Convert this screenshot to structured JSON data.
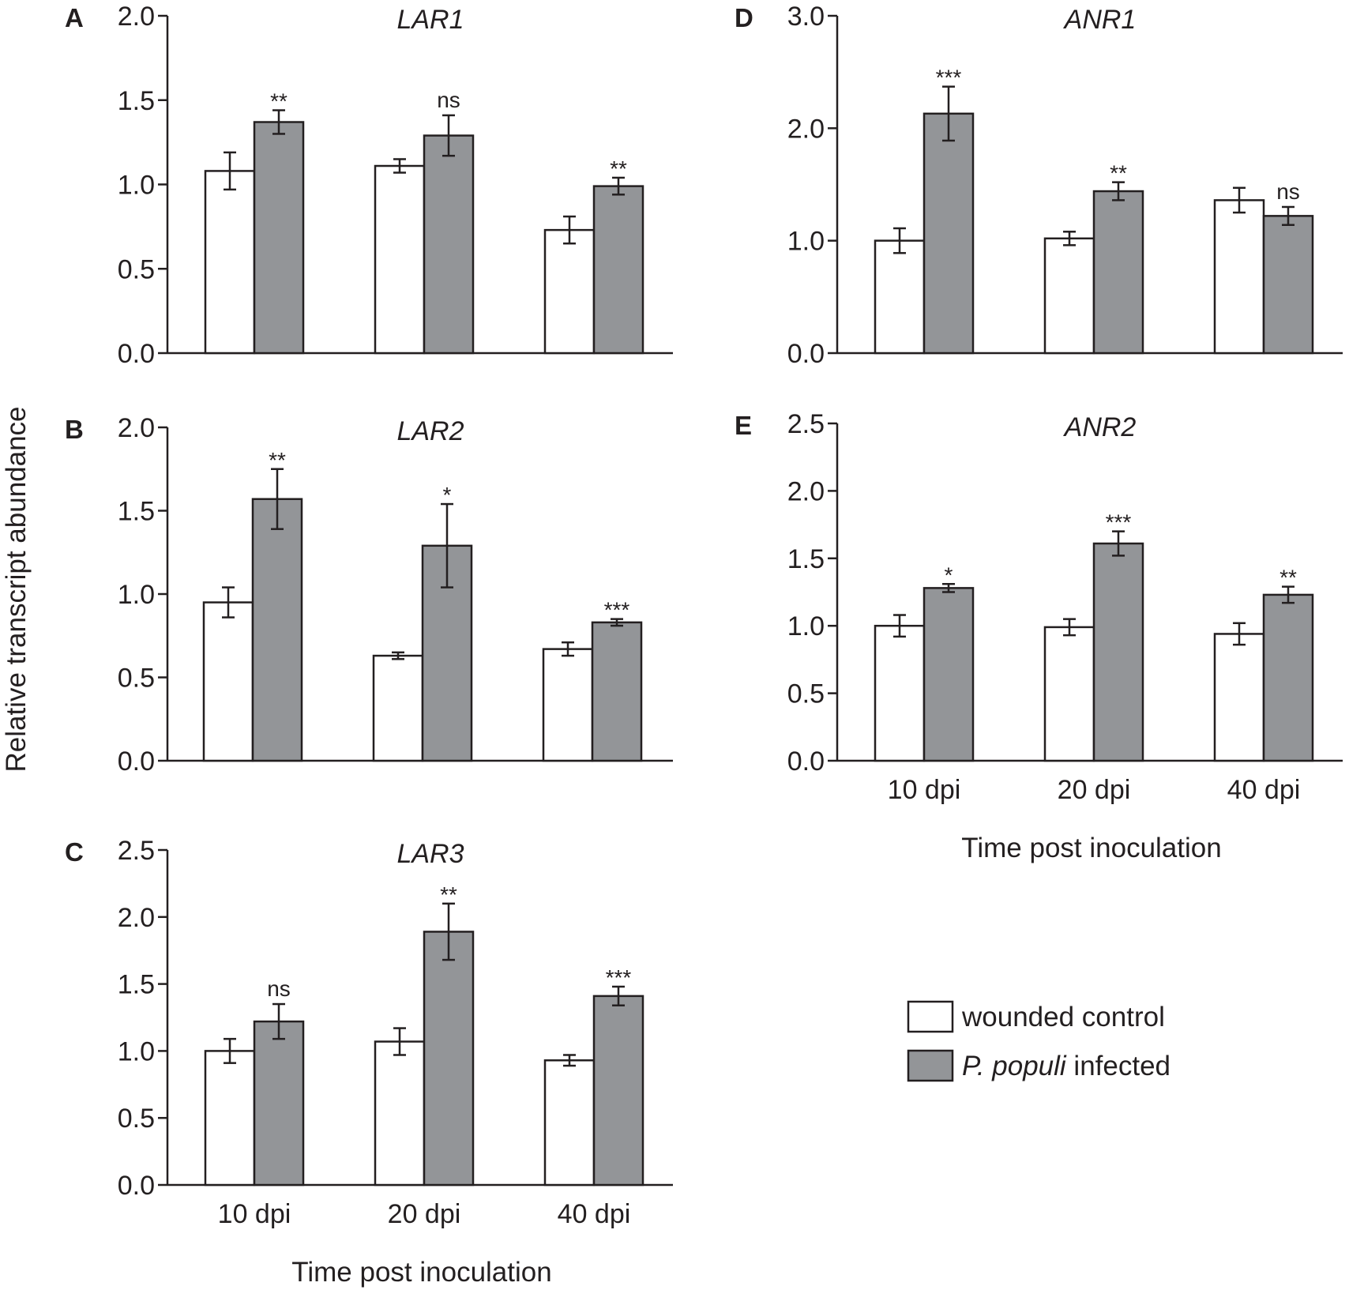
{
  "colors": {
    "control": "#ffffff",
    "infected": "#939598",
    "ink": "#231f20"
  },
  "y_axis_title": "Relative transcript abundance",
  "legend": {
    "control_label": "wounded control",
    "infected_italic": "P. populi",
    "infected_rest": " infected"
  },
  "chart_data": [
    {
      "type": "bar",
      "panel": "A",
      "title": "LAR1",
      "categories": [
        "10 dpi",
        "20 dpi",
        "40 dpi"
      ],
      "ylim": [
        0,
        2.0
      ],
      "yticks": [
        "0.0",
        "0.5",
        "1.0",
        "1.5",
        "2.0"
      ],
      "xlabel": "",
      "ylabel": "Relative transcript abundance",
      "series": [
        {
          "name": "wounded control",
          "values": [
            1.08,
            1.11,
            0.73
          ],
          "errors": [
            0.11,
            0.04,
            0.08
          ]
        },
        {
          "name": "P. populi infected",
          "values": [
            1.37,
            1.29,
            0.99
          ],
          "errors": [
            0.07,
            0.12,
            0.05
          ]
        }
      ],
      "significance": [
        "**",
        "ns",
        "**"
      ]
    },
    {
      "type": "bar",
      "panel": "B",
      "title": "LAR2",
      "categories": [
        "10 dpi",
        "20 dpi",
        "40 dpi"
      ],
      "ylim": [
        0,
        2.0
      ],
      "yticks": [
        "0.0",
        "0.5",
        "1.0",
        "1.5",
        "2.0"
      ],
      "xlabel": "",
      "ylabel": "Relative transcript abundance",
      "series": [
        {
          "name": "wounded control",
          "values": [
            0.95,
            0.63,
            0.67
          ],
          "errors": [
            0.09,
            0.02,
            0.04
          ]
        },
        {
          "name": "P. populi infected",
          "values": [
            1.57,
            1.29,
            0.83
          ],
          "errors": [
            0.18,
            0.25,
            0.02
          ]
        }
      ],
      "significance": [
        "**",
        "*",
        "***"
      ]
    },
    {
      "type": "bar",
      "panel": "C",
      "title": "LAR3",
      "categories": [
        "10 dpi",
        "20 dpi",
        "40 dpi"
      ],
      "ylim": [
        0,
        2.5
      ],
      "yticks": [
        "0.0",
        "0.5",
        "1.0",
        "1.5",
        "2.0",
        "2.5"
      ],
      "xlabel": "Time post inoculation",
      "ylabel": "Relative transcript abundance",
      "series": [
        {
          "name": "wounded control",
          "values": [
            1.0,
            1.07,
            0.93
          ],
          "errors": [
            0.09,
            0.1,
            0.04
          ]
        },
        {
          "name": "P. populi infected",
          "values": [
            1.22,
            1.89,
            1.41
          ],
          "errors": [
            0.13,
            0.21,
            0.07
          ]
        }
      ],
      "significance": [
        "ns",
        "**",
        "***"
      ]
    },
    {
      "type": "bar",
      "panel": "D",
      "title": "ANR1",
      "categories": [
        "10 dpi",
        "20 dpi",
        "40 dpi"
      ],
      "ylim": [
        0,
        3.0
      ],
      "yticks": [
        "0.0",
        "1.0",
        "2.0",
        "3.0"
      ],
      "xlabel": "",
      "ylabel": "Relative transcript abundance",
      "series": [
        {
          "name": "wounded control",
          "values": [
            1.0,
            1.02,
            1.36
          ],
          "errors": [
            0.11,
            0.06,
            0.11
          ]
        },
        {
          "name": "P. populi infected",
          "values": [
            2.13,
            1.44,
            1.22
          ],
          "errors": [
            0.24,
            0.08,
            0.08
          ]
        }
      ],
      "significance": [
        "***",
        "**",
        "ns"
      ]
    },
    {
      "type": "bar",
      "panel": "E",
      "title": "ANR2",
      "categories": [
        "10 dpi",
        "20 dpi",
        "40 dpi"
      ],
      "ylim": [
        0,
        2.5
      ],
      "yticks": [
        "0.0",
        "0.5",
        "1.0",
        "1.5",
        "2.0",
        "2.5"
      ],
      "xlabel": "Time post inoculation",
      "ylabel": "Relative transcript abundance",
      "series": [
        {
          "name": "wounded control",
          "values": [
            1.0,
            0.99,
            0.94
          ],
          "errors": [
            0.08,
            0.06,
            0.08
          ]
        },
        {
          "name": "P. populi infected",
          "values": [
            1.28,
            1.61,
            1.23
          ],
          "errors": [
            0.03,
            0.09,
            0.06
          ]
        }
      ],
      "significance": [
        "*",
        "***",
        "**"
      ]
    }
  ]
}
